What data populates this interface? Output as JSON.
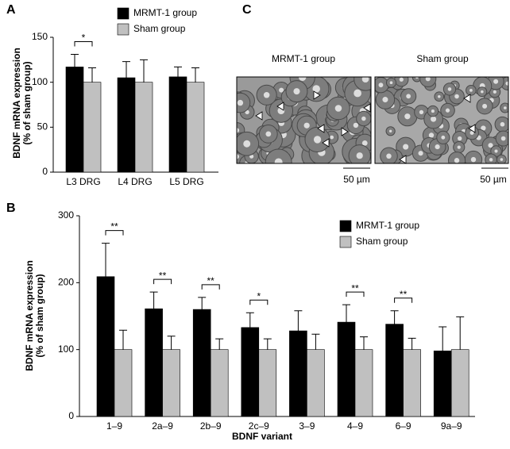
{
  "chart_data": [
    {
      "type": "bar",
      "panel_label": "A",
      "y_label": [
        "BDNF mRNA expression",
        "(% of sham group)"
      ],
      "categories": [
        "L3 DRG",
        "L4 DRG",
        "L5 DRG"
      ],
      "series": [
        {
          "name": "MRMT-1 group",
          "color": "#000000",
          "values": [
            117,
            105,
            106
          ],
          "errors": [
            14,
            18,
            11
          ]
        },
        {
          "name": "Sham group",
          "color": "#c0c0c0",
          "values": [
            100,
            100,
            100
          ],
          "errors": [
            16,
            25,
            16
          ]
        }
      ],
      "significance": [
        "*",
        null,
        null
      ],
      "ylim": [
        0,
        150
      ],
      "yticks": [
        0,
        50,
        100,
        150
      ]
    },
    {
      "type": "bar",
      "panel_label": "B",
      "y_label": [
        "BDNF mRNA expression",
        "(% of sham group)"
      ],
      "x_label": "BDNF variant",
      "categories": [
        "1–9",
        "2a–9",
        "2b–9",
        "2c–9",
        "3–9",
        "4–9",
        "6–9",
        "9a–9"
      ],
      "series": [
        {
          "name": "MRMT-1 group",
          "color": "#000000",
          "values": [
            209,
            161,
            160,
            133,
            128,
            141,
            138,
            98
          ],
          "errors": [
            50,
            25,
            18,
            22,
            30,
            26,
            20,
            36
          ]
        },
        {
          "name": "Sham group",
          "color": "#c0c0c0",
          "values": [
            100,
            100,
            100,
            100,
            100,
            100,
            100,
            100
          ],
          "errors": [
            29,
            20,
            16,
            16,
            23,
            19,
            17,
            49
          ]
        }
      ],
      "significance": [
        "**",
        "**",
        "**",
        "*",
        null,
        "**",
        "**",
        null
      ],
      "ylim": [
        0,
        300
      ],
      "yticks": [
        0,
        100,
        200,
        300
      ]
    }
  ],
  "image_panel": {
    "panel_label": "C",
    "images": [
      {
        "caption": "MRMT-1 group",
        "scale_bar": "50 µm"
      },
      {
        "caption": "Sham group",
        "scale_bar": "50 µm"
      }
    ]
  }
}
